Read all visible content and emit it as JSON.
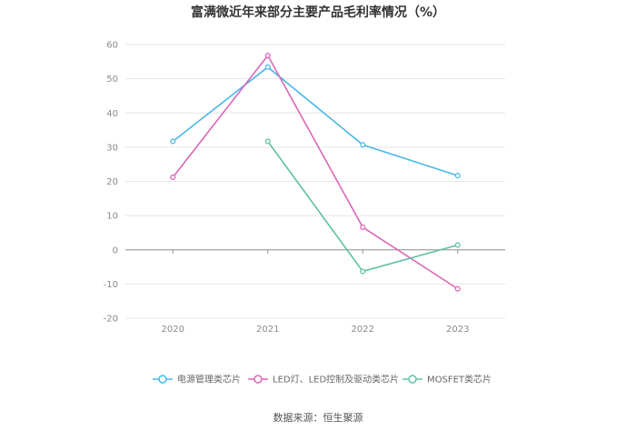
{
  "chart_data": {
    "type": "line",
    "title": "富满微近年来部分主要产品毛利率情况（%）",
    "categories": [
      "2020",
      "2021",
      "2022",
      "2023"
    ],
    "ylim": [
      -20,
      60
    ],
    "yticks": [
      -20,
      -10,
      0,
      10,
      20,
      30,
      40,
      50,
      60
    ],
    "grid": true,
    "legend": "bottom",
    "series": [
      {
        "name": "电源管理类芯片",
        "color": "#4ab8e8",
        "values": [
          31.7,
          53.4,
          30.7,
          21.7
        ]
      },
      {
        "name": "LED灯、LED控制及驱动类芯片",
        "color": "#d966b8",
        "values": [
          21.2,
          56.8,
          6.6,
          -11.4
        ]
      },
      {
        "name": "MOSFET类芯片",
        "color": "#5fc0a6",
        "values": [
          null,
          31.7,
          -6.3,
          1.4
        ]
      }
    ],
    "source": "数据来源：恒生聚源"
  }
}
